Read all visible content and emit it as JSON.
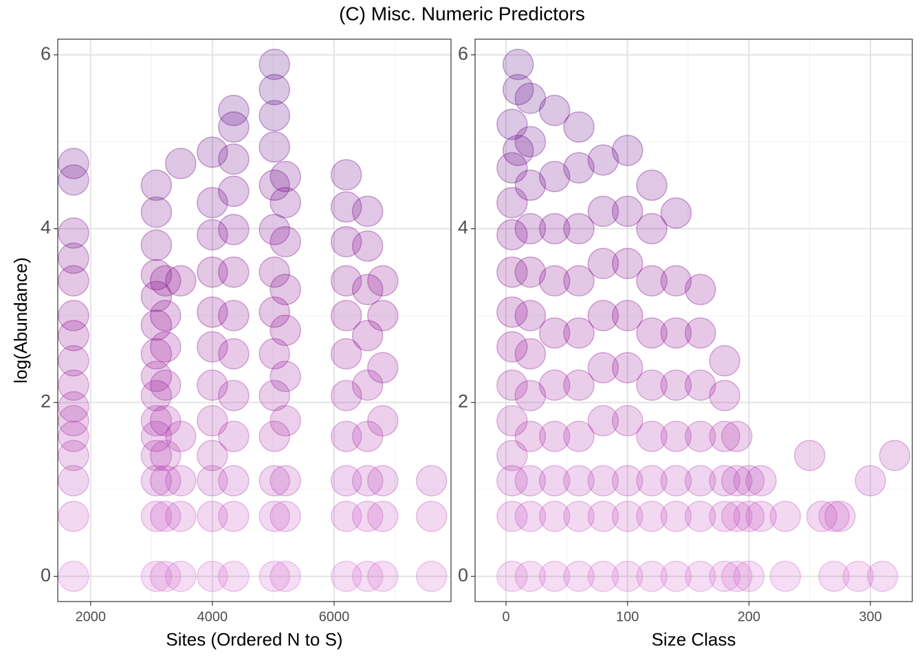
{
  "title": "(C) Misc. Numeric Predictors",
  "chart_data": [
    {
      "type": "scatter",
      "xlabel": "Sites (Ordered N to S)",
      "ylabel": "log(Abundance)",
      "xlim": [
        1460,
        7920
      ],
      "ylim": [
        -0.29,
        6.18
      ],
      "xticks": [
        2000,
        4000,
        6000
      ],
      "yticks": [
        0,
        2,
        4,
        6
      ],
      "grid": true,
      "color_scale": [
        "#da70d6",
        "#8b008b",
        "#4b0082"
      ],
      "point_alpha": 0.22,
      "x": [
        1720,
        1720,
        1720,
        1720,
        1720,
        1720,
        1720,
        1720,
        1720,
        1720,
        1720,
        1720,
        1720,
        1720,
        1720,
        1720,
        3080,
        3080,
        3080,
        3080,
        3080,
        3080,
        3080,
        3080,
        3080,
        3080,
        3080,
        3080,
        3080,
        3080,
        3080,
        3230,
        3230,
        3230,
        3230,
        3230,
        3230,
        3230,
        3230,
        3230,
        3480,
        3480,
        3480,
        3480,
        3480,
        3480,
        4000,
        4000,
        4000,
        4000,
        4000,
        4000,
        4000,
        4000,
        4000,
        4000,
        4000,
        4000,
        4350,
        4350,
        4350,
        4350,
        4350,
        4350,
        4350,
        4350,
        4350,
        4350,
        4350,
        4350,
        4350,
        5020,
        5020,
        5020,
        5020,
        5020,
        5020,
        5020,
        5020,
        5020,
        5020,
        5020,
        5020,
        5020,
        5020,
        5200,
        5200,
        5200,
        5200,
        5200,
        5200,
        5200,
        5200,
        5200,
        5200,
        6200,
        6200,
        6200,
        6200,
        6200,
        6200,
        6200,
        6200,
        6200,
        6200,
        6200,
        6550,
        6550,
        6550,
        6550,
        6550,
        6550,
        6550,
        6550,
        6550,
        6800,
        6800,
        6800,
        6800,
        6800,
        6800,
        6800,
        7600,
        7600,
        7600
      ],
      "values": [
        0,
        0.69,
        1.1,
        1.39,
        1.61,
        1.79,
        1.95,
        2.2,
        2.48,
        2.77,
        3.0,
        3.4,
        3.66,
        3.95,
        4.56,
        4.75,
        0,
        0.69,
        1.1,
        1.39,
        1.61,
        1.79,
        2.08,
        2.3,
        2.56,
        2.89,
        3.22,
        3.47,
        3.81,
        4.19,
        4.5,
        0,
        0.69,
        1.1,
        1.39,
        1.79,
        2.2,
        2.64,
        3.0,
        3.4,
        0,
        0.69,
        1.1,
        1.61,
        3.4,
        4.75,
        0,
        0.69,
        1.1,
        1.39,
        1.79,
        2.2,
        2.64,
        3.04,
        3.5,
        3.93,
        4.3,
        4.88,
        0,
        0.69,
        1.1,
        1.61,
        2.08,
        2.56,
        3.0,
        3.5,
        3.99,
        4.43,
        4.8,
        5.17,
        5.36,
        0,
        0.69,
        1.1,
        1.61,
        2.08,
        2.56,
        3.04,
        3.5,
        3.99,
        4.5,
        4.94,
        5.3,
        5.6,
        5.89,
        0,
        0.69,
        1.1,
        1.79,
        2.3,
        2.83,
        3.3,
        3.85,
        4.3,
        4.6,
        0,
        0.69,
        1.1,
        1.61,
        2.08,
        2.56,
        3.0,
        3.4,
        3.85,
        4.25,
        4.62,
        0,
        0.69,
        1.1,
        1.61,
        2.2,
        2.77,
        3.3,
        3.8,
        4.2,
        0,
        0.69,
        1.1,
        1.79,
        2.4,
        3.0,
        3.4,
        0,
        0.69,
        1.1
      ]
    },
    {
      "type": "scatter",
      "xlabel": "Size Class",
      "xlim": [
        -25.5,
        334.5
      ],
      "ylim": [
        -0.29,
        6.18
      ],
      "xticks": [
        0,
        100,
        200,
        300
      ],
      "yticks": [
        0,
        2,
        4,
        6
      ],
      "grid": true,
      "color_scale": [
        "#da70d6",
        "#8b008b",
        "#4b0082"
      ],
      "point_alpha": 0.22,
      "x": [
        5,
        5,
        5,
        5,
        5,
        5,
        5,
        5,
        5,
        5,
        5,
        5,
        5,
        10,
        10,
        10,
        20,
        20,
        20,
        20,
        20,
        20,
        20,
        20,
        20,
        20,
        20,
        20,
        40,
        40,
        40,
        40,
        40,
        40,
        40,
        40,
        40,
        40,
        60,
        60,
        60,
        60,
        60,
        60,
        60,
        60,
        60,
        60,
        80,
        80,
        80,
        80,
        80,
        80,
        80,
        80,
        80,
        100,
        100,
        100,
        100,
        100,
        100,
        100,
        100,
        100,
        120,
        120,
        120,
        120,
        120,
        120,
        120,
        120,
        120,
        140,
        140,
        140,
        140,
        140,
        140,
        140,
        140,
        160,
        160,
        160,
        160,
        160,
        160,
        160,
        180,
        180,
        180,
        180,
        180,
        180,
        190,
        190,
        190,
        190,
        200,
        200,
        200,
        210,
        210,
        230,
        230,
        250,
        260,
        270,
        270,
        275,
        290,
        300,
        310,
        320
      ],
      "values": [
        0,
        0.69,
        1.1,
        1.39,
        1.79,
        2.2,
        2.64,
        3.04,
        3.5,
        3.93,
        4.3,
        4.7,
        5.2,
        5.6,
        5.89,
        4.9,
        0,
        0.69,
        1.1,
        1.61,
        2.08,
        2.56,
        3.0,
        3.5,
        4.0,
        4.5,
        5.0,
        5.5,
        0,
        0.69,
        1.1,
        1.61,
        2.2,
        2.8,
        3.4,
        4.0,
        4.6,
        5.36,
        0,
        0.69,
        1.1,
        1.61,
        2.2,
        2.8,
        3.4,
        4.0,
        4.7,
        5.17,
        0,
        0.69,
        1.1,
        1.79,
        2.4,
        3.0,
        3.6,
        4.2,
        4.79,
        0,
        0.69,
        1.1,
        1.79,
        2.4,
        3.0,
        3.6,
        4.2,
        4.9,
        0,
        0.69,
        1.1,
        1.61,
        2.2,
        2.8,
        3.4,
        4.0,
        4.5,
        0,
        0.69,
        1.1,
        1.61,
        2.2,
        2.8,
        3.4,
        4.18,
        0,
        0.69,
        1.1,
        1.61,
        2.2,
        2.8,
        3.3,
        0,
        0.69,
        1.1,
        1.61,
        2.08,
        2.48,
        0,
        0.69,
        1.1,
        1.61,
        0,
        0.69,
        1.1,
        0.69,
        1.1,
        0,
        0.69,
        1.39,
        0.69,
        0,
        0.69,
        0.69,
        0,
        1.1,
        0,
        1.39
      ]
    }
  ]
}
